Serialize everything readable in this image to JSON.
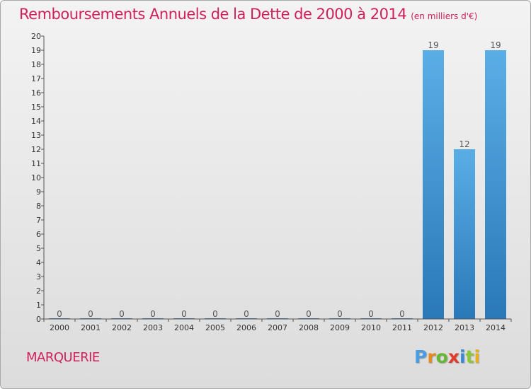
{
  "chart_data": {
    "type": "bar",
    "title": "Remboursements Annuels de la Dette de 2000 à 2014",
    "unit_note": "(en milliers d'€)",
    "categories": [
      "2000",
      "2001",
      "2002",
      "2003",
      "2004",
      "2005",
      "2006",
      "2007",
      "2008",
      "2009",
      "2010",
      "2011",
      "2012",
      "2013",
      "2014"
    ],
    "values": [
      0,
      0,
      0,
      0,
      0,
      0,
      0,
      0,
      0,
      0,
      0,
      0,
      19,
      12,
      19
    ],
    "data_labels": [
      "0",
      "0",
      "0",
      "0",
      "0",
      "0",
      "0",
      "0",
      "0",
      "0",
      "0",
      "0",
      "19",
      "12",
      "19"
    ],
    "ylim": [
      0,
      20
    ],
    "yticks": [
      "0",
      "1",
      "2",
      "3",
      "4",
      "5",
      "6",
      "7",
      "8",
      "9",
      "10",
      "11",
      "12",
      "13",
      "14",
      "15",
      "16",
      "17",
      "18",
      "19",
      "20"
    ],
    "xlabel": "",
    "ylabel": "",
    "grid": false,
    "legend": "none",
    "bar_color_top": "#5aaee6",
    "bar_color_bottom": "#2a78b8"
  },
  "commune": "MARQUERIE",
  "logo": {
    "letters": [
      "P",
      "r",
      "o",
      "x",
      "i",
      "t",
      "i"
    ],
    "colors": [
      "#4a9de0",
      "#e58a1e",
      "#66b832",
      "#e23a2a",
      "#3a8ad8",
      "#8ac83a",
      "#e5b01e"
    ]
  }
}
